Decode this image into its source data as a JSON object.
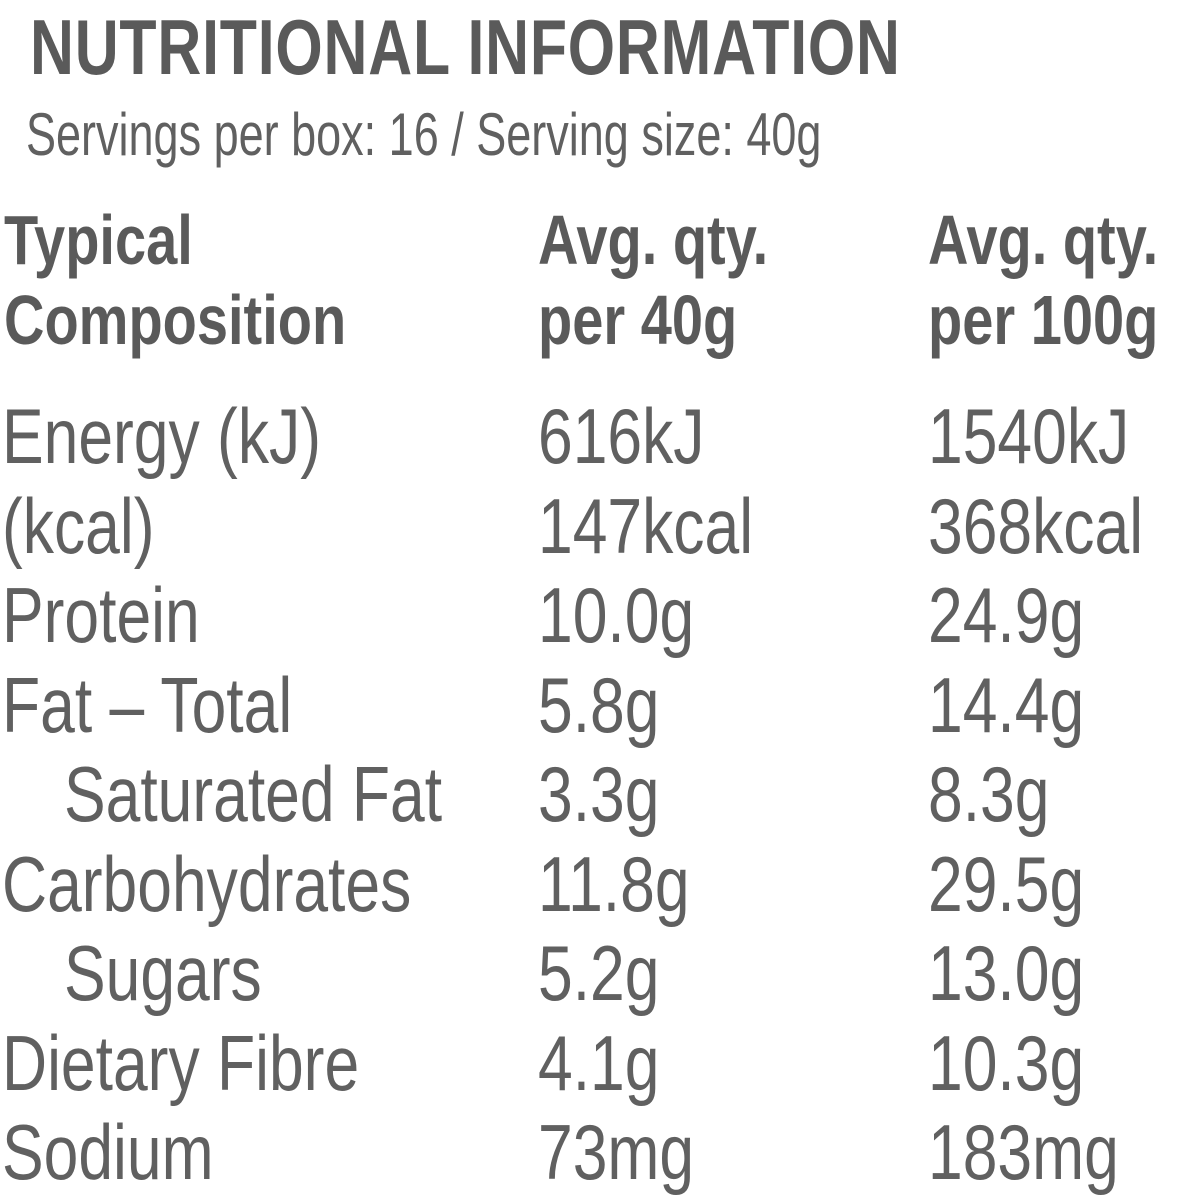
{
  "title": "NUTRITIONAL INFORMATION",
  "subtitle": "Servings per box: 16 / Serving size: 40g",
  "columns": [
    {
      "line1": "Typical",
      "line2": "Composition"
    },
    {
      "line1": "Avg. qty.",
      "line2": "per 40g"
    },
    {
      "line1": "Avg. qty.",
      "line2": "per 100g"
    }
  ],
  "rows": [
    {
      "label": "Energy (kJ)",
      "per_serving": "616kJ",
      "per_100g": "1540kJ",
      "indent": false
    },
    {
      "label": "(kcal)",
      "per_serving": "147kcal",
      "per_100g": "368kcal",
      "indent": false
    },
    {
      "label": "Protein",
      "per_serving": "10.0g",
      "per_100g": "24.9g",
      "indent": false
    },
    {
      "label": "Fat – Total",
      "per_serving": "5.8g",
      "per_100g": "14.4g",
      "indent": false
    },
    {
      "label": "Saturated Fat",
      "per_serving": "3.3g",
      "per_100g": "8.3g",
      "indent": true
    },
    {
      "label": "Carbohydrates",
      "per_serving": "11.8g",
      "per_100g": "29.5g",
      "indent": false
    },
    {
      "label": "Sugars",
      "per_serving": "5.2g",
      "per_100g": "13.0g",
      "indent": true
    },
    {
      "label": "Dietary Fibre",
      "per_serving": "4.1g",
      "per_100g": "10.3g",
      "indent": false
    },
    {
      "label": "Sodium",
      "per_serving": "73mg",
      "per_100g": "183mg",
      "indent": false
    }
  ]
}
